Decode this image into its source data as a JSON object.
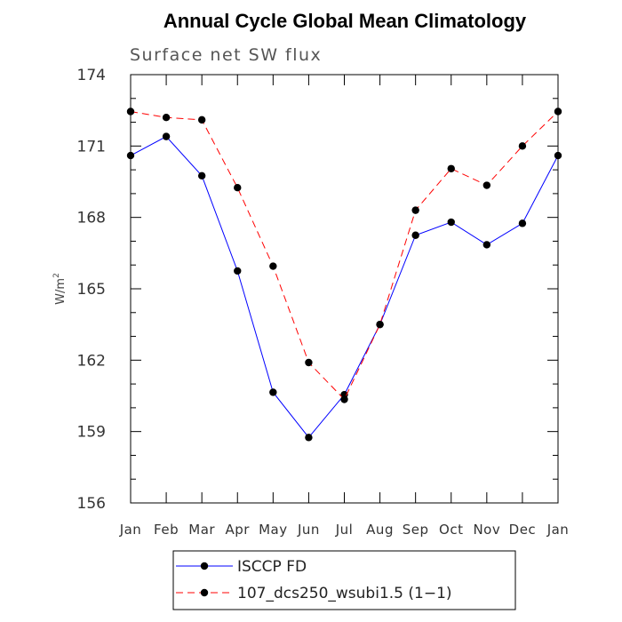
{
  "chart_data": {
    "type": "line",
    "title": "Annual Cycle Global Mean Climatology",
    "subtitle": "Surface net SW flux",
    "ylabel_base": "W/m",
    "ylabel_sup": "2",
    "categories": [
      "Jan",
      "Feb",
      "Mar",
      "Apr",
      "May",
      "Jun",
      "Jul",
      "Aug",
      "Sep",
      "Oct",
      "Nov",
      "Dec",
      "Jan"
    ],
    "ylim": [
      156,
      174
    ],
    "yticks": [
      156,
      159,
      162,
      165,
      168,
      171,
      174
    ],
    "yminor_step": 1,
    "series": [
      {
        "name": "ISCCP FD",
        "color": "#0000ff",
        "dash": "",
        "values": [
          170.6,
          171.4,
          169.75,
          165.75,
          160.65,
          158.75,
          160.55,
          163.5,
          167.25,
          167.8,
          166.85,
          167.75,
          170.6
        ]
      },
      {
        "name": "107_dcs250_wsubi1.5 (1−1)",
        "color": "#ff0000",
        "dash": "8,5",
        "values": [
          172.45,
          172.2,
          172.1,
          169.25,
          165.95,
          161.9,
          160.35,
          163.5,
          168.3,
          170.05,
          169.35,
          171.0,
          172.45
        ]
      }
    ]
  }
}
